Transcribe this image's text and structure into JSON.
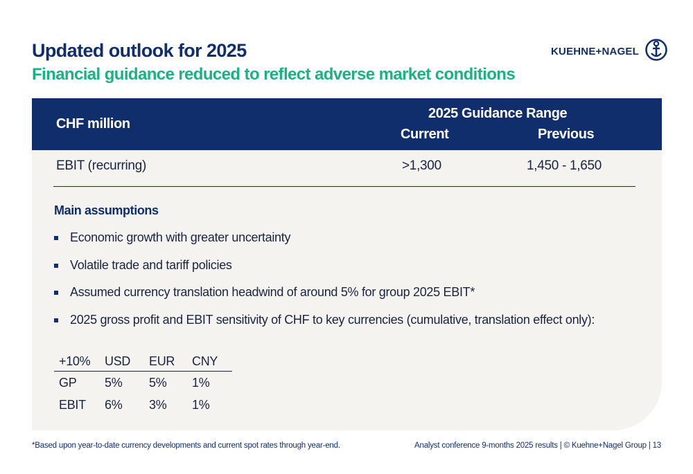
{
  "slide": {
    "title": "Updated outlook for 2025",
    "subtitle": "Financial guidance reduced to reflect adverse market conditions"
  },
  "brand": {
    "logo_text": "KUEHNE+NAGEL",
    "logo_icon": "anchor-icon",
    "primary_color": "#0f2e6b",
    "accent_color": "#1ab37f",
    "panel_color": "#f4f3ef"
  },
  "guidance_table": {
    "unit_header": "CHF million",
    "range_header": "2025 Guidance Range",
    "current_header": "Current",
    "previous_header": "Previous",
    "row": {
      "label": "EBIT (recurring)",
      "current": ">1,300",
      "previous": "1,450 - 1,650"
    }
  },
  "assumptions": {
    "heading": "Main assumptions",
    "items": [
      "Economic growth with greater uncertainty",
      "Volatile trade and tariff policies",
      "Assumed currency translation headwind of around 5% for group 2025 EBIT*",
      "2025 gross profit and EBIT sensitivity of CHF to key currencies (cumulative, translation effect only):"
    ]
  },
  "sensitivity_table": {
    "header": [
      "+10%",
      "USD",
      "EUR",
      "CNY"
    ],
    "rows": [
      [
        "GP",
        "5%",
        "5%",
        "1%"
      ],
      [
        "EBIT",
        "6%",
        "3%",
        "1%"
      ]
    ]
  },
  "footer": {
    "footnote": "*Based upon year-to-date currency developments and current spot rates through year-end.",
    "right_text": "Analyst conference 9-months 2025 results | © Kuehne+Nagel Group | 13"
  }
}
